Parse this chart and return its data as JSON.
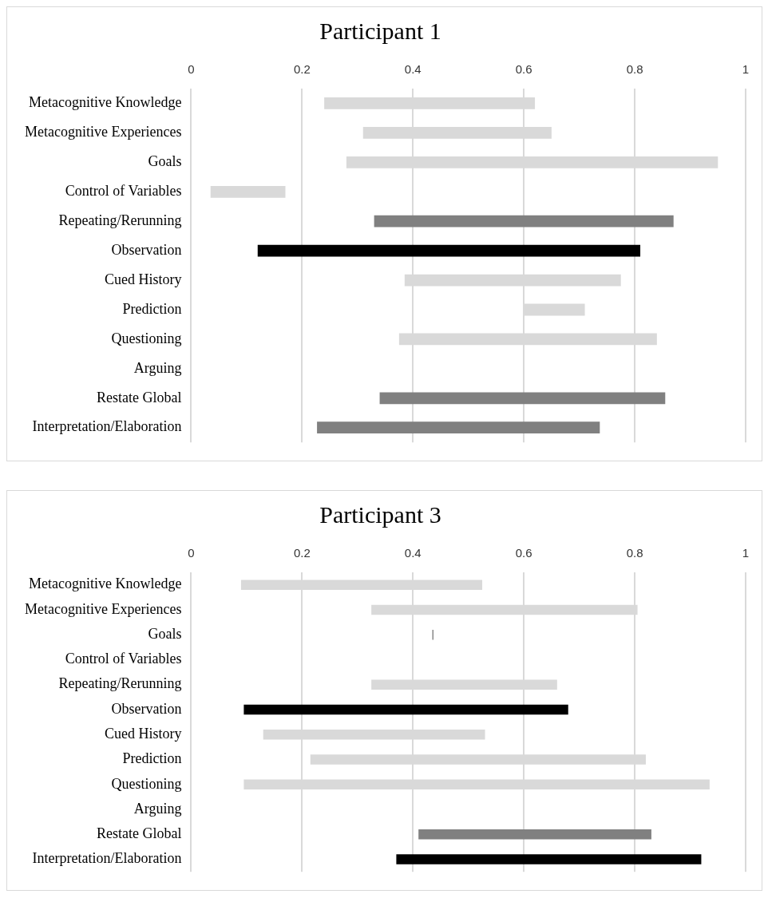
{
  "chart_data": [
    {
      "type": "bar",
      "title": "Participant 1",
      "orientation": "horizontal",
      "grid": "x",
      "categories": [
        "Metacognitive Knowledge",
        "Metacognitive Experiences",
        "Goals",
        "Control of Variables",
        "Repeating/Rerunning",
        "Observation",
        "Cued History",
        "Prediction",
        "Questioning",
        "Arguing",
        "Restate Global",
        "Interpretation/Elaboration"
      ],
      "base": [
        0.24,
        0.31,
        0.28,
        0.035,
        0.33,
        0.12,
        0.385,
        0.6,
        0.375,
        null,
        0.34,
        0.227
      ],
      "values": [
        0.38,
        0.34,
        0.67,
        0.135,
        0.54,
        0.69,
        0.39,
        0.11,
        0.465,
        null,
        0.515,
        0.51
      ],
      "colors": [
        "#d9d9d9",
        "#d9d9d9",
        "#d9d9d9",
        "#d9d9d9",
        "#808080",
        "#000000",
        "#d9d9d9",
        "#d9d9d9",
        "#d9d9d9",
        "#d9d9d9",
        "#808080",
        "#808080"
      ],
      "xlim": [
        0,
        1
      ],
      "xticks": [
        0,
        0.2,
        0.4,
        0.6,
        0.8,
        1
      ]
    },
    {
      "type": "bar",
      "title": "Participant 3",
      "orientation": "horizontal",
      "grid": "x",
      "categories": [
        "Metacognitive Knowledge",
        "Metacognitive Experiences",
        "Goals",
        "Control of Variables",
        "Repeating/Rerunning",
        "Observation",
        "Cued History",
        "Prediction",
        "Questioning",
        "Arguing",
        "Restate Global",
        "Interpretation/Elaboration"
      ],
      "base": [
        0.09,
        0.325,
        0.435,
        null,
        0.325,
        0.095,
        0.13,
        0.215,
        0.095,
        null,
        0.41,
        0.37
      ],
      "values": [
        0.435,
        0.48,
        0.002,
        null,
        0.335,
        0.585,
        0.4,
        0.605,
        0.84,
        null,
        0.42,
        0.55
      ],
      "colors": [
        "#d9d9d9",
        "#d9d9d9",
        "#808080",
        "#d9d9d9",
        "#d9d9d9",
        "#000000",
        "#d9d9d9",
        "#d9d9d9",
        "#d9d9d9",
        "#d9d9d9",
        "#808080",
        "#000000"
      ],
      "xlim": [
        0,
        1
      ],
      "xticks": [
        0,
        0.2,
        0.4,
        0.6,
        0.8,
        1
      ]
    }
  ]
}
